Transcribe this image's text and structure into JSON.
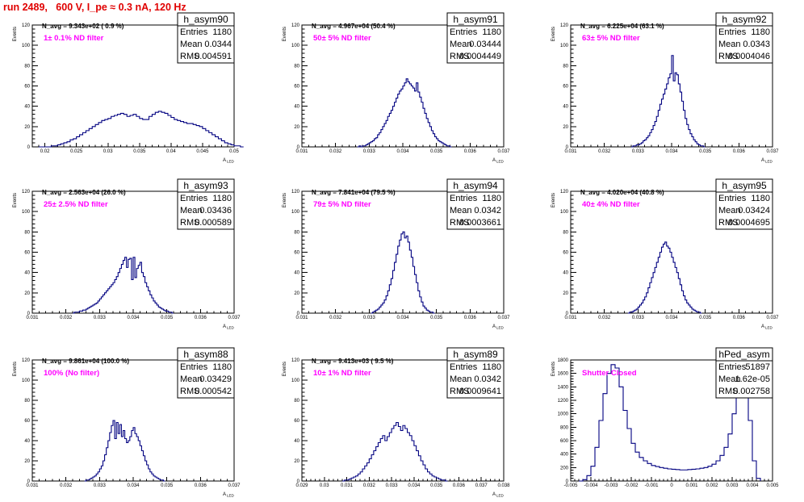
{
  "page": {
    "title": "run 2489,   600 V, I_pe ≈ 0.3 nA, 120 Hz"
  },
  "chart_data": [
    {
      "type": "histogram",
      "name": "h_asym90",
      "navg": "N_avg = 9.343e+02 ( 0.9 %)",
      "filter_label": "1± 0.1% ND filter",
      "xlabel": "A_{LED}",
      "ylabel": "Events",
      "stats": {
        "Entries": "1180",
        "Mean": "0.0344",
        "RMS": "0.004591"
      },
      "xlim": [
        0.018,
        0.05
      ],
      "ylim": [
        0,
        120
      ],
      "xticks": [
        0.02,
        0.025,
        0.03,
        0.035,
        0.04,
        0.045,
        0.05
      ],
      "xticklabels": [
        "0.02",
        "0.025",
        "0.03",
        "0.035",
        "0.04",
        "0.045",
        "0.05"
      ],
      "yticks": [
        0,
        20,
        40,
        60,
        80,
        100,
        120
      ],
      "bins": {
        "start": 0.019,
        "width": 0.0005,
        "counts": [
          0,
          0,
          0,
          0,
          1,
          1,
          2,
          3,
          4,
          5,
          7,
          8,
          10,
          12,
          14,
          16,
          18,
          20,
          22,
          24,
          26,
          27,
          28,
          30,
          31,
          32,
          33,
          32,
          30,
          31,
          32,
          30,
          28,
          27,
          27,
          30,
          32,
          34,
          35,
          34,
          33,
          31,
          29,
          27,
          26,
          25,
          24,
          23,
          23,
          22,
          21,
          20,
          18,
          16,
          14,
          12,
          10,
          8,
          6,
          4,
          3,
          2,
          1,
          1,
          0
        ]
      }
    },
    {
      "type": "histogram",
      "name": "h_asym91",
      "navg": "N_avg = 4.967e+04 (50.4 %)",
      "filter_label": "50± 5% ND filter",
      "xlabel": "A_{LED}",
      "ylabel": "Events",
      "stats": {
        "Entries": "1180",
        "Mean": "0.03444",
        "RMS": "0.0004449"
      },
      "xlim": [
        0.031,
        0.037
      ],
      "ylim": [
        0,
        120
      ],
      "xticks": [
        0.031,
        0.032,
        0.033,
        0.034,
        0.035,
        0.036,
        0.037
      ],
      "xticklabels": [
        "0.031",
        "0.032",
        "0.033",
        "0.034",
        "0.035",
        "0.036",
        "0.037"
      ],
      "yticks": [
        0,
        20,
        40,
        60,
        80,
        100,
        120
      ],
      "bins": {
        "start": 0.03265,
        "width": 5e-05,
        "counts": [
          0,
          1,
          0,
          1,
          1,
          2,
          3,
          4,
          5,
          6,
          8,
          9,
          12,
          14,
          17,
          20,
          23,
          26,
          30,
          33,
          36,
          40,
          44,
          48,
          52,
          55,
          57,
          60,
          63,
          67,
          64,
          62,
          60,
          58,
          55,
          63,
          54,
          49,
          44,
          38,
          33,
          28,
          24,
          20,
          16,
          13,
          10,
          8,
          6,
          5,
          4,
          3,
          2,
          1,
          1,
          0
        ]
      }
    },
    {
      "type": "histogram",
      "name": "h_asym92",
      "navg": "N_avg = 6.225e+04 (63.1 %)",
      "filter_label": "63± 5% ND filter",
      "xlabel": "A_{LED}",
      "ylabel": "Events",
      "stats": {
        "Entries": "1180",
        "Mean": "0.0343",
        "RMS": "0.0004046"
      },
      "xlim": [
        0.031,
        0.037
      ],
      "ylim": [
        0,
        120
      ],
      "xticks": [
        0.031,
        0.032,
        0.033,
        0.034,
        0.035,
        0.036,
        0.037
      ],
      "xticklabels": [
        "0.031",
        "0.032",
        "0.033",
        "0.034",
        "0.035",
        "0.036",
        "0.037"
      ],
      "yticks": [
        0,
        20,
        40,
        60,
        80,
        100,
        120
      ],
      "bins": {
        "start": 0.0328,
        "width": 5e-05,
        "counts": [
          0,
          1,
          1,
          2,
          2,
          3,
          4,
          6,
          7,
          9,
          11,
          14,
          17,
          21,
          25,
          30,
          36,
          42,
          47,
          52,
          57,
          62,
          68,
          72,
          90,
          65,
          73,
          71,
          62,
          54,
          45,
          36,
          28,
          22,
          17,
          13,
          10,
          7,
          5,
          3,
          2,
          1,
          1,
          0
        ]
      }
    },
    {
      "type": "histogram",
      "name": "h_asym93",
      "navg": "N_avg = 2.563e+04 (26.0 %)",
      "filter_label": "25± 2.5% ND filter",
      "xlabel": "A_{LED}",
      "ylabel": "Events",
      "stats": {
        "Entries": "1180",
        "Mean": "0.03436",
        "RMS": "0.000589"
      },
      "xlim": [
        0.031,
        0.037
      ],
      "ylim": [
        0,
        120
      ],
      "xticks": [
        0.031,
        0.032,
        0.033,
        0.034,
        0.035,
        0.036,
        0.037
      ],
      "xticklabels": [
        "0.031",
        "0.032",
        "0.033",
        "0.034",
        "0.035",
        "0.036",
        "0.037"
      ],
      "yticks": [
        0,
        20,
        40,
        60,
        80,
        100,
        120
      ],
      "bins": {
        "start": 0.0322,
        "width": 5e-05,
        "counts": [
          0,
          1,
          1,
          1,
          2,
          2,
          3,
          3,
          4,
          5,
          6,
          7,
          8,
          9,
          10,
          12,
          14,
          16,
          18,
          20,
          22,
          24,
          26,
          28,
          30,
          33,
          36,
          40,
          44,
          48,
          52,
          55,
          45,
          53,
          54,
          33,
          55,
          35,
          44,
          47,
          50,
          40,
          36,
          30,
          26,
          22,
          18,
          15,
          12,
          10,
          8,
          6,
          5,
          4,
          3,
          2,
          2,
          1,
          1,
          0
        ]
      }
    },
    {
      "type": "histogram",
      "name": "h_asym94",
      "navg": "N_avg = 7.841e+04 (79.5 %)",
      "filter_label": "79± 5% ND filter",
      "xlabel": "A_{LED}",
      "ylabel": "Events",
      "stats": {
        "Entries": "1180",
        "Mean": "0.0342",
        "RMS": "0.0003661"
      },
      "xlim": [
        0.031,
        0.037
      ],
      "ylim": [
        0,
        120
      ],
      "xticks": [
        0.031,
        0.032,
        0.033,
        0.034,
        0.035,
        0.036,
        0.037
      ],
      "xticklabels": [
        "0.031",
        "0.032",
        "0.033",
        "0.034",
        "0.035",
        "0.036",
        "0.037"
      ],
      "yticks": [
        0,
        20,
        40,
        60,
        80,
        100,
        120
      ],
      "bins": {
        "start": 0.03305,
        "width": 5e-05,
        "counts": [
          0,
          1,
          2,
          3,
          4,
          6,
          8,
          10,
          13,
          17,
          22,
          28,
          34,
          42,
          50,
          58,
          66,
          72,
          78,
          80,
          74,
          76,
          70,
          62,
          55,
          46,
          38,
          30,
          22,
          16,
          11,
          7,
          5,
          3,
          2,
          1,
          1,
          0
        ]
      }
    },
    {
      "type": "histogram",
      "name": "h_asym95",
      "navg": "N_avg = 4.020e+04 (40.8 %)",
      "filter_label": "40± 4% ND filter",
      "xlabel": "A_{LED}",
      "ylabel": "Events",
      "stats": {
        "Entries": "1180",
        "Mean": "0.03424",
        "RMS": "0.0004695"
      },
      "xlim": [
        0.031,
        0.037
      ],
      "ylim": [
        0,
        120
      ],
      "xticks": [
        0.031,
        0.032,
        0.033,
        0.034,
        0.035,
        0.036,
        0.037
      ],
      "xticklabels": [
        "0.031",
        "0.032",
        "0.033",
        "0.034",
        "0.035",
        "0.036",
        "0.037"
      ],
      "yticks": [
        0,
        20,
        40,
        60,
        80,
        100,
        120
      ],
      "bins": {
        "start": 0.0327,
        "width": 5e-05,
        "counts": [
          0,
          1,
          1,
          2,
          3,
          4,
          6,
          8,
          10,
          13,
          16,
          20,
          25,
          30,
          35,
          40,
          45,
          50,
          55,
          60,
          65,
          68,
          70,
          66,
          64,
          60,
          55,
          50,
          45,
          40,
          34,
          28,
          22,
          17,
          13,
          10,
          8,
          6,
          4,
          3,
          2,
          1,
          1,
          0
        ]
      }
    },
    {
      "type": "histogram",
      "name": "h_asym88",
      "navg": "N_avg = 9.861e+04 (100.0 %)",
      "filter_label": "100% (No filter)",
      "xlabel": "A_{LED}",
      "ylabel": "Events",
      "stats": {
        "Entries": "1180",
        "Mean": "0.03429",
        "RMS": "0.000542"
      },
      "xlim": [
        0.031,
        0.037
      ],
      "ylim": [
        0,
        120
      ],
      "xticks": [
        0.031,
        0.032,
        0.033,
        0.034,
        0.035,
        0.036,
        0.037
      ],
      "xticklabels": [
        "0.031",
        "0.032",
        "0.033",
        "0.034",
        "0.035",
        "0.036",
        "0.037"
      ],
      "yticks": [
        0,
        20,
        40,
        60,
        80,
        100,
        120
      ],
      "bins": {
        "start": 0.03255,
        "width": 5e-05,
        "counts": [
          0,
          1,
          1,
          2,
          3,
          4,
          5,
          7,
          9,
          12,
          15,
          20,
          26,
          33,
          40,
          48,
          55,
          60,
          42,
          58,
          47,
          56,
          44,
          50,
          42,
          38,
          40,
          44,
          50,
          53,
          47,
          44,
          40,
          35,
          30,
          25,
          20,
          16,
          12,
          9,
          7,
          5,
          4,
          3,
          2,
          1,
          1,
          0
        ]
      }
    },
    {
      "type": "histogram",
      "name": "h_asym89",
      "navg": "N_avg = 9.413e+03 ( 9.5 %)",
      "filter_label": "10± 1% ND filter",
      "xlabel": "A_{LED}",
      "ylabel": "Events",
      "stats": {
        "Entries": "1180",
        "Mean": "0.0342",
        "RMS": "0.0009641"
      },
      "xlim": [
        0.029,
        0.038
      ],
      "ylim": [
        0,
        120
      ],
      "xticks": [
        0.029,
        0.03,
        0.031,
        0.032,
        0.033,
        0.034,
        0.035,
        0.036,
        0.037,
        0.038
      ],
      "xticklabels": [
        "0.029",
        "0.03",
        "0.031",
        "0.032",
        "0.033",
        "0.034",
        "0.035",
        "0.036",
        "0.037",
        "0.038"
      ],
      "yticks": [
        0,
        20,
        40,
        60,
        80,
        100,
        120
      ],
      "bins": {
        "start": 0.0308,
        "width": 0.0001,
        "counts": [
          0,
          1,
          1,
          2,
          3,
          4,
          5,
          7,
          9,
          12,
          15,
          18,
          22,
          26,
          30,
          34,
          38,
          42,
          45,
          40,
          44,
          48,
          52,
          55,
          58,
          54,
          50,
          55,
          52,
          48,
          45,
          40,
          35,
          30,
          25,
          20,
          16,
          12,
          9,
          7,
          5,
          4,
          3,
          2,
          1,
          1,
          0
        ]
      }
    },
    {
      "type": "histogram",
      "name": "hPed_asym",
      "navg": "",
      "filter_label": "Shutter Closed",
      "xlabel": "",
      "ylabel": "Events",
      "stats": {
        "Entries": "51897",
        "Mean": "1.62e-05",
        "RMS": "0.002758"
      },
      "xlim": [
        -0.005,
        0.005
      ],
      "ylim": [
        0,
        1800
      ],
      "xticks": [
        -0.005,
        -0.004,
        -0.003,
        -0.002,
        -0.001,
        0,
        0.001,
        0.002,
        0.003,
        0.004,
        0.005
      ],
      "xticklabels": [
        "-0.005",
        "-0.004",
        "-0.003",
        "-0.002",
        "-0.001",
        "0",
        "0.001",
        "0.002",
        "0.003",
        "0.004",
        "0.005"
      ],
      "yticks": [
        0,
        200,
        400,
        600,
        800,
        1000,
        1200,
        1400,
        1600,
        1800
      ],
      "bins": {
        "start": -0.0046,
        "width": 0.0002,
        "counts": [
          0,
          20,
          80,
          220,
          500,
          900,
          1300,
          1600,
          1730,
          1680,
          1400,
          1050,
          780,
          560,
          430,
          350,
          300,
          260,
          230,
          215,
          200,
          190,
          180,
          175,
          170,
          165,
          165,
          170,
          175,
          180,
          190,
          200,
          220,
          250,
          300,
          380,
          500,
          700,
          1000,
          1350,
          1640,
          1450,
          900,
          300,
          40
        ]
      }
    }
  ]
}
